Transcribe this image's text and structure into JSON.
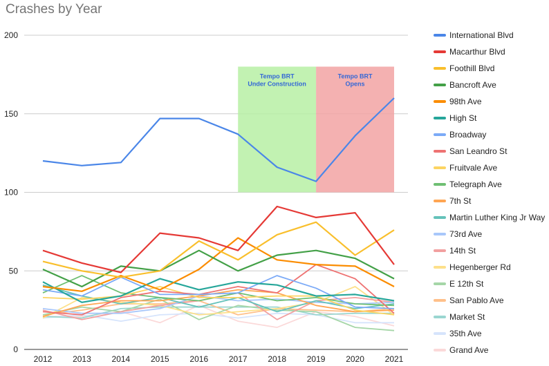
{
  "chart_data": {
    "type": "line",
    "title": "Crashes by Year",
    "x": [
      "2012",
      "2013",
      "2014",
      "2015",
      "2016",
      "2017",
      "2018",
      "2019",
      "2020",
      "2021"
    ],
    "yticks": [
      0,
      50,
      100,
      150,
      200
    ],
    "ylim": [
      0,
      200
    ],
    "grid": true,
    "legend": "right",
    "annotations": [
      {
        "text": [
          "Tempo BRT",
          "Under Construction"
        ],
        "from": "2017",
        "to": "2019",
        "color": "#b7f0a4"
      },
      {
        "text": [
          "Tempo BRT",
          "Opens"
        ],
        "from": "2019",
        "to": "2021",
        "color": "#f2a3a3"
      }
    ],
    "series": [
      {
        "name": "International Blvd",
        "color": "#4a86e8",
        "values": [
          120,
          117,
          119,
          147,
          147,
          137,
          116,
          107,
          136,
          160
        ]
      },
      {
        "name": "Macarthur Blvd",
        "color": "#e53935",
        "values": [
          63,
          55,
          49,
          74,
          71,
          63,
          91,
          84,
          87,
          54
        ]
      },
      {
        "name": "Foothill Blvd",
        "color": "#f9bf2c",
        "values": [
          56,
          50,
          46,
          50,
          69,
          57,
          73,
          81,
          60,
          76
        ]
      },
      {
        "name": "Bancroft Ave",
        "color": "#43a047",
        "values": [
          51,
          40,
          53,
          50,
          63,
          50,
          60,
          63,
          58,
          45
        ]
      },
      {
        "name": "98th Ave",
        "color": "#fb8c00",
        "values": [
          40,
          37,
          47,
          38,
          51,
          71,
          57,
          54,
          53,
          40
        ]
      },
      {
        "name": "High St",
        "color": "#26a69a",
        "values": [
          43,
          30,
          34,
          45,
          38,
          43,
          41,
          34,
          35,
          31
        ]
      },
      {
        "name": "Broadway",
        "color": "#7baaf7",
        "values": [
          38,
          34,
          46,
          35,
          35,
          36,
          47,
          39,
          27,
          26
        ]
      },
      {
        "name": "San Leandro St",
        "color": "#ee7272",
        "values": [
          24,
          22,
          33,
          37,
          35,
          40,
          36,
          54,
          45,
          23
        ]
      },
      {
        "name": "Fruitvale Ave",
        "color": "#fcd462",
        "values": [
          33,
          32,
          34,
          40,
          33,
          33,
          34,
          34,
          25,
          22
        ]
      },
      {
        "name": "Telegraph Ave",
        "color": "#6fbf73",
        "values": [
          36,
          47,
          36,
          33,
          31,
          36,
          31,
          33,
          29,
          28
        ]
      },
      {
        "name": "7th St",
        "color": "#ffa552",
        "values": [
          21,
          28,
          31,
          31,
          34,
          38,
          36,
          28,
          24,
          25
        ]
      },
      {
        "name": "Martin Luther King Jr Way",
        "color": "#64c2ba",
        "values": [
          41,
          34,
          29,
          33,
          27,
          33,
          24,
          31,
          26,
          29
        ]
      },
      {
        "name": "73rd Ave",
        "color": "#a8c7fa",
        "values": [
          26,
          23,
          23,
          26,
          34,
          31,
          32,
          30,
          29,
          30
        ]
      },
      {
        "name": "14th St",
        "color": "#f2a0a0",
        "values": [
          25,
          19,
          24,
          28,
          31,
          36,
          19,
          31,
          33,
          30
        ]
      },
      {
        "name": "Hegenberger Rd",
        "color": "#fde08a",
        "values": [
          20,
          33,
          30,
          28,
          22,
          24,
          26,
          30,
          40,
          22
        ]
      },
      {
        "name": "E 12th St",
        "color": "#a5d6a7",
        "values": [
          22,
          27,
          24,
          32,
          19,
          28,
          25,
          24,
          14,
          12
        ]
      },
      {
        "name": "San Pablo Ave",
        "color": "#ffc08a",
        "values": [
          22,
          25,
          29,
          29,
          31,
          22,
          26,
          25,
          24,
          26
        ]
      },
      {
        "name": "Market St",
        "color": "#9ad6d0",
        "values": [
          21,
          20,
          26,
          27,
          27,
          27,
          27,
          22,
          23,
          23
        ]
      },
      {
        "name": "35th Ave",
        "color": "#d6e4fc",
        "values": [
          20,
          22,
          18,
          22,
          23,
          20,
          23,
          22,
          17,
          17
        ]
      },
      {
        "name": "Grand Ave",
        "color": "#fbd9d9",
        "values": [
          21,
          21,
          24,
          17,
          28,
          18,
          14,
          24,
          21,
          15
        ]
      }
    ]
  }
}
